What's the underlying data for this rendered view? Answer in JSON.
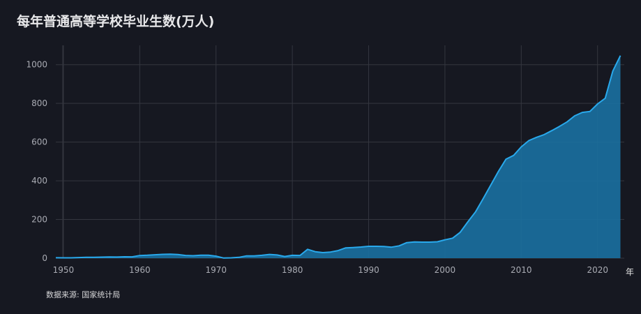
{
  "chart_data": {
    "type": "area",
    "title": "每年普通高等学校毕业生数(万人)",
    "xlabel": "年",
    "ylabel": "",
    "xlim": [
      1949,
      2023.5
    ],
    "ylim": [
      0,
      1100
    ],
    "xticks": [
      1950,
      1960,
      1970,
      1980,
      1990,
      2000,
      2010,
      2020
    ],
    "yticks": [
      0,
      200,
      400,
      600,
      800,
      1000
    ],
    "grid": true,
    "source": "数据来源: 国家统计局",
    "colors": {
      "line": "#29a9ec",
      "fill": "#1a6f9e",
      "background": "#161821",
      "grid": "#34363f"
    },
    "series": [
      {
        "x": [
          1949,
          1950,
          1951,
          1952,
          1953,
          1954,
          1955,
          1956,
          1957,
          1958,
          1959,
          1960,
          1961,
          1962,
          1963,
          1964,
          1965,
          1966,
          1967,
          1968,
          1969,
          1970,
          1971,
          1972,
          1973,
          1974,
          1975,
          1976,
          1977,
          1978,
          1979,
          1980,
          1981,
          1982,
          1983,
          1984,
          1985,
          1986,
          1987,
          1988,
          1989,
          1990,
          1991,
          1992,
          1993,
          1994,
          1995,
          1996,
          1997,
          1998,
          1999,
          2000,
          2001,
          2002,
          2003,
          2004,
          2005,
          2006,
          2007,
          2008,
          2009,
          2010,
          2011,
          2012,
          2013,
          2014,
          2015,
          2016,
          2017,
          2018,
          2019,
          2020,
          2021,
          2022,
          2023
        ],
        "y": [
          2.1,
          1.8,
          1.9,
          3.2,
          4.8,
          4.7,
          5.5,
          6.3,
          5.6,
          7.2,
          7.0,
          13.6,
          15.1,
          17.7,
          19.9,
          20.4,
          18.6,
          14.1,
          12.5,
          15.0,
          15.0,
          10.3,
          0.6,
          1.7,
          4.3,
          11.9,
          11.9,
          14.9,
          19.4,
          16.5,
          8.5,
          14.7,
          14.0,
          45.7,
          33.5,
          28.7,
          31.6,
          39.3,
          53.2,
          55.3,
          57.6,
          61.4,
          61.4,
          60.4,
          57.1,
          63.7,
          80.5,
          83.9,
          82.9,
          83.0,
          84.8,
          95.0,
          103.6,
          133.7,
          187.7,
          239.1,
          306.8,
          377.5,
          447.8,
          511.9,
          531.1,
          575.4,
          608.2,
          624.7,
          638.7,
          659.4,
          680.9,
          704.2,
          735.8,
          753.3,
          758.5,
          797.2,
          826.5,
          967.3,
          1047.0
        ]
      }
    ]
  }
}
